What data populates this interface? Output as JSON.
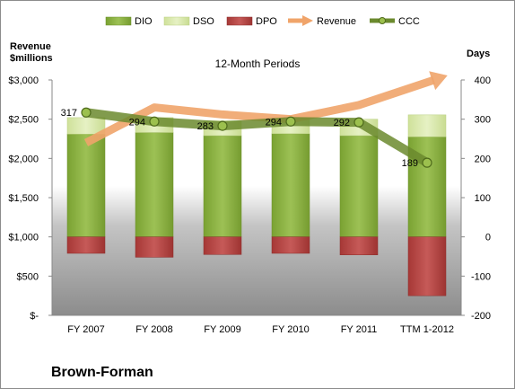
{
  "chart_data": {
    "type": "bar",
    "title": "12-Month Periods",
    "company": "Brown-Forman",
    "left_axis_label_line1": "Revenue",
    "left_axis_label_line2": "$millions",
    "right_axis_label": "Days",
    "categories": [
      "FY 2007",
      "FY 2008",
      "FY 2009",
      "FY 2010",
      "FY 2011",
      "TTM 1-2012"
    ],
    "left_ylim": [
      0,
      3000
    ],
    "left_ticks": [
      {
        "value": 0,
        "label": "$-"
      },
      {
        "value": 500,
        "label": "$500"
      },
      {
        "value": 1000,
        "label": "$1,000"
      },
      {
        "value": 1500,
        "label": "$1,500"
      },
      {
        "value": 2000,
        "label": "$2,000"
      },
      {
        "value": 2500,
        "label": "$2,500"
      },
      {
        "value": 3000,
        "label": "$3,000"
      }
    ],
    "right_ylim": [
      -200,
      400
    ],
    "right_ticks": [
      {
        "value": -200,
        "label": "-200"
      },
      {
        "value": -100,
        "label": "-100"
      },
      {
        "value": 0,
        "label": "0"
      },
      {
        "value": 100,
        "label": "100"
      },
      {
        "value": 200,
        "label": "200"
      },
      {
        "value": 300,
        "label": "300"
      },
      {
        "value": 400,
        "label": "400"
      }
    ],
    "series": [
      {
        "name": "DIO",
        "axis": "right",
        "kind": "bar",
        "color": "#8fb544",
        "values": [
          262,
          266,
          258,
          263,
          258,
          255
        ]
      },
      {
        "name": "DSO",
        "axis": "right",
        "kind": "bar",
        "color": "#d7e8a5",
        "values": [
          42,
          38,
          38,
          40,
          42,
          56
        ]
      },
      {
        "name": "DPO",
        "axis": "right",
        "kind": "bar",
        "color": "#b54544",
        "values": [
          -42,
          -52,
          -45,
          -42,
          -46,
          -150
        ]
      },
      {
        "name": "Revenue",
        "axis": "left",
        "kind": "arrow-line",
        "color": "#f0a46a",
        "values": [
          2200,
          2650,
          2560,
          2500,
          2680,
          2970
        ]
      },
      {
        "name": "CCC",
        "axis": "right",
        "kind": "line",
        "color": "#6b8a2e",
        "values": [
          317,
          294,
          283,
          294,
          292,
          189
        ]
      }
    ],
    "ccc_labels": [
      "317",
      "294",
      "283",
      "294",
      "292",
      "189"
    ],
    "legend_position": "top",
    "grid": false
  }
}
